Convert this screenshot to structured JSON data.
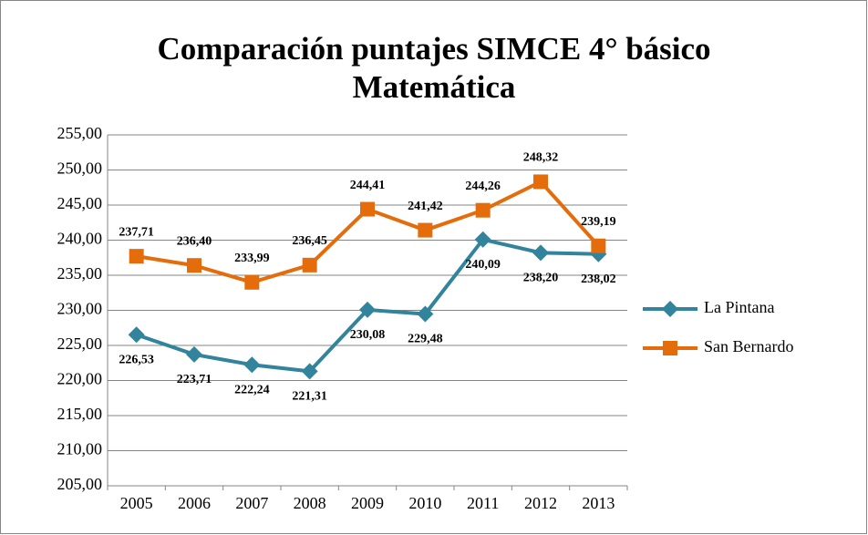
{
  "chart_data": {
    "type": "line",
    "title": [
      "Comparación puntajes SIMCE 4° básico",
      "Matemática"
    ],
    "categories": [
      "2005",
      "2006",
      "2007",
      "2008",
      "2009",
      "2010",
      "2011",
      "2012",
      "2013"
    ],
    "series": [
      {
        "name": "La Pintana",
        "color": "#31849b",
        "marker": "diamond",
        "label_position": "below",
        "values": [
          226.53,
          223.71,
          222.24,
          221.31,
          230.08,
          229.48,
          240.09,
          238.2,
          238.02
        ],
        "value_labels": [
          "226,53",
          "223,71",
          "222,24",
          "221,31",
          "230,08",
          "229,48",
          "240,09",
          "238,20",
          "238,02"
        ]
      },
      {
        "name": "San Bernardo",
        "color": "#e46c0a",
        "marker": "square",
        "label_position": "above",
        "values": [
          237.71,
          236.4,
          233.99,
          236.45,
          244.41,
          241.42,
          244.26,
          248.32,
          239.19
        ],
        "value_labels": [
          "237,71",
          "236,40",
          "233,99",
          "236,45",
          "244,41",
          "241,42",
          "244,26",
          "248,32",
          "239,19"
        ]
      }
    ],
    "ylim": [
      205,
      255
    ],
    "yticks": [
      {
        "value": 205,
        "label": "205,00"
      },
      {
        "value": 210,
        "label": "210,00"
      },
      {
        "value": 215,
        "label": "215,00"
      },
      {
        "value": 220,
        "label": "220,00"
      },
      {
        "value": 225,
        "label": "225,00"
      },
      {
        "value": 230,
        "label": "230,00"
      },
      {
        "value": 235,
        "label": "235,00"
      },
      {
        "value": 240,
        "label": "240,00"
      },
      {
        "value": 245,
        "label": "245,00"
      },
      {
        "value": 250,
        "label": "250,00"
      },
      {
        "value": 255,
        "label": "255,00"
      }
    ],
    "grid": true,
    "legend": "right"
  }
}
